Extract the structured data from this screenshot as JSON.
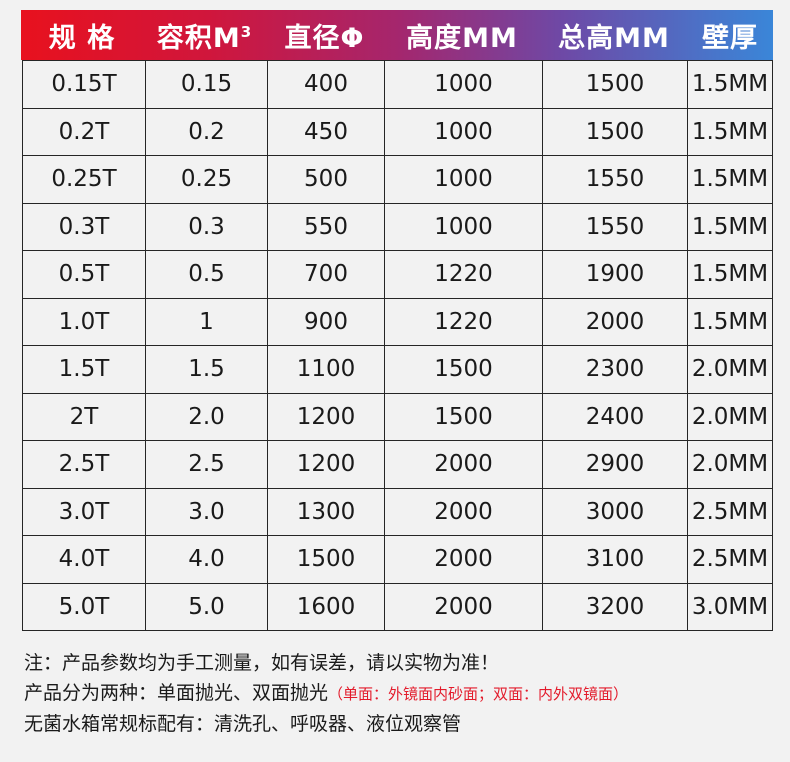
{
  "table": {
    "headers": [
      "规 格",
      "容积M",
      "直径Φ",
      "高度MM",
      "总高MM",
      "壁厚"
    ],
    "header_sup": "3",
    "rows": [
      [
        "0.15T",
        "0.15",
        "400",
        "1000",
        "1500",
        "1.5MM"
      ],
      [
        "0.2T",
        "0.2",
        "450",
        "1000",
        "1500",
        "1.5MM"
      ],
      [
        "0.25T",
        "0.25",
        "500",
        "1000",
        "1550",
        "1.5MM"
      ],
      [
        "0.3T",
        "0.3",
        "550",
        "1000",
        "1550",
        "1.5MM"
      ],
      [
        "0.5T",
        "0.5",
        "700",
        "1220",
        "1900",
        "1.5MM"
      ],
      [
        "1.0T",
        "1",
        "900",
        "1220",
        "2000",
        "1.5MM"
      ],
      [
        "1.5T",
        "1.5",
        "1100",
        "1500",
        "2300",
        "2.0MM"
      ],
      [
        "2T",
        "2.0",
        "1200",
        "1500",
        "2400",
        "2.0MM"
      ],
      [
        "2.5T",
        "2.5",
        "1200",
        "2000",
        "2900",
        "2.0MM"
      ],
      [
        "3.0T",
        "3.0",
        "1300",
        "2000",
        "3000",
        "2.5MM"
      ],
      [
        "4.0T",
        "4.0",
        "1500",
        "2000",
        "3100",
        "2.5MM"
      ],
      [
        "5.0T",
        "5.0",
        "1600",
        "2000",
        "3200",
        "3.0MM"
      ]
    ]
  },
  "notes": {
    "line1": "注：产品参数均为手工测量，如有误差，请以实物为准！",
    "line2": "产品分为两种：单面抛光、双面抛光",
    "line2_red": "（单面：外镜面内砂面；双面：内外双镜面）",
    "line3": "无菌水箱常规标配有：清洗孔、呼吸器、液位观察管"
  },
  "colors": {
    "header_gradient": [
      "#e8111e",
      "#a5266d",
      "#3a86d8"
    ],
    "note_red": "#e31b2b",
    "border": "#262626",
    "background": "#f2f2f2"
  }
}
